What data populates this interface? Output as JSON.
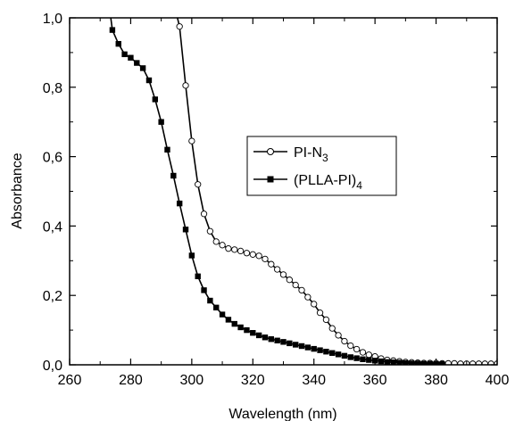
{
  "chart_data": {
    "type": "line",
    "xlabel": "Wavelength (nm)",
    "ylabel": "Absorbance",
    "xlim": [
      260,
      400
    ],
    "ylim": [
      0.0,
      1.0
    ],
    "x_ticks": [
      "260",
      "280",
      "300",
      "320",
      "340",
      "360",
      "380",
      "400"
    ],
    "y_ticks": [
      "0,0",
      "0,2",
      "0,4",
      "0,6",
      "0,8",
      "1,0"
    ],
    "legend_position": "center-right",
    "series": [
      {
        "name": "PI-N3",
        "legend_main": "PI-N",
        "legend_sub": "3",
        "marker": "open-circle",
        "color": "#000000",
        "x": [
          292.5,
          296,
          298,
          300,
          302,
          304,
          306,
          308,
          310,
          312,
          314,
          316,
          318,
          320,
          322,
          324,
          326,
          328,
          330,
          332,
          334,
          336,
          338,
          340,
          342,
          344,
          346,
          348,
          350,
          352,
          354,
          356,
          358,
          360,
          362,
          364,
          366,
          368,
          370,
          372,
          374,
          376,
          378,
          380,
          382,
          384,
          386,
          388,
          390,
          392,
          394,
          396,
          398,
          400
        ],
        "y": [
          1.1,
          0.975,
          0.805,
          0.645,
          0.52,
          0.435,
          0.385,
          0.355,
          0.345,
          0.335,
          0.332,
          0.328,
          0.322,
          0.318,
          0.314,
          0.305,
          0.29,
          0.275,
          0.26,
          0.245,
          0.23,
          0.215,
          0.195,
          0.175,
          0.15,
          0.13,
          0.105,
          0.085,
          0.068,
          0.055,
          0.045,
          0.036,
          0.029,
          0.024,
          0.018,
          0.014,
          0.012,
          0.01,
          0.008,
          0.007,
          0.006,
          0.005,
          0.005,
          0.005,
          0.004,
          0.004,
          0.004,
          0.003,
          0.003,
          0.003,
          0.003,
          0.003,
          0.003,
          0.003
        ]
      },
      {
        "name": "(PLLA-PI)4",
        "legend_main": "(PLLA-PI)",
        "legend_sub": "4",
        "marker": "filled-square",
        "color": "#000000",
        "x": [
          272,
          274,
          276,
          278,
          280,
          282,
          284,
          286,
          288,
          290,
          292,
          294,
          296,
          298,
          300,
          302,
          304,
          306,
          308,
          310,
          312,
          314,
          316,
          318,
          320,
          322,
          324,
          326,
          328,
          330,
          332,
          334,
          336,
          338,
          340,
          342,
          344,
          346,
          348,
          350,
          352,
          354,
          356,
          358,
          360,
          362,
          364,
          366,
          368,
          370,
          372,
          374,
          376,
          378,
          380,
          382
        ],
        "y": [
          1.1,
          0.965,
          0.925,
          0.895,
          0.885,
          0.87,
          0.855,
          0.82,
          0.765,
          0.7,
          0.62,
          0.545,
          0.465,
          0.39,
          0.315,
          0.255,
          0.215,
          0.185,
          0.165,
          0.145,
          0.13,
          0.118,
          0.108,
          0.1,
          0.092,
          0.085,
          0.079,
          0.074,
          0.07,
          0.066,
          0.062,
          0.058,
          0.054,
          0.05,
          0.046,
          0.042,
          0.038,
          0.034,
          0.03,
          0.026,
          0.022,
          0.019,
          0.016,
          0.014,
          0.012,
          0.01,
          0.008,
          0.007,
          0.006,
          0.005,
          0.004,
          0.004,
          0.003,
          0.003,
          0.002,
          0.002
        ]
      }
    ]
  }
}
